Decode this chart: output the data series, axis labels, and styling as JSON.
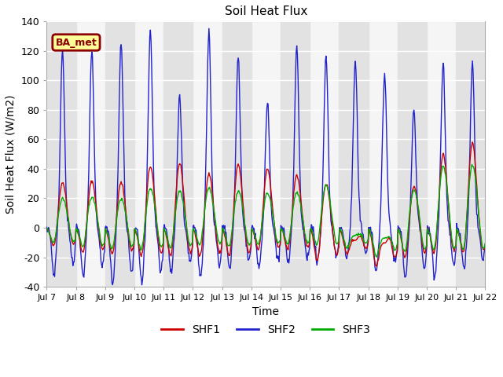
{
  "title": "Soil Heat Flux",
  "xlabel": "Time",
  "ylabel": "Soil Heat Flux (W/m2)",
  "ylim": [
    -40,
    140
  ],
  "yticks": [
    -40,
    -20,
    0,
    20,
    40,
    60,
    80,
    100,
    120,
    140
  ],
  "xtick_labels": [
    "Jul 7",
    "Jul 8",
    "Jul 9",
    "Jul 10",
    "Jul 11",
    "Jul 12",
    "Jul 13",
    "Jul 14",
    "Jul 15",
    "Jul 16",
    "Jul 17",
    "Jul 18",
    "Jul 19",
    "Jul 20",
    "Jul 21",
    "Jul 22"
  ],
  "station_label": "BA_met",
  "line_colors": {
    "SHF1": "#cc0000",
    "SHF2": "#2222cc",
    "SHF3": "#00aa00"
  },
  "fig_bg": "#ffffff",
  "plot_bg": "#f5f5f5",
  "band_color": "#e2e2e2",
  "grid_color": "#ffffff",
  "shf1_peaks": [
    31,
    32,
    31,
    42,
    44,
    37,
    43,
    40,
    36,
    30,
    -8,
    -10,
    28,
    50,
    58
  ],
  "shf2_peaks": [
    121,
    121,
    126,
    133,
    90,
    133,
    116,
    85,
    123,
    118,
    113,
    103,
    80,
    112,
    111
  ],
  "shf3_peaks": [
    20,
    21,
    20,
    27,
    25,
    27,
    25,
    24,
    24,
    29,
    -5,
    -7,
    26,
    42,
    43
  ],
  "shf1_troughs": [
    -14,
    -19,
    -20,
    -22,
    -22,
    -22,
    -22,
    -17,
    -17,
    -24,
    -17,
    -25,
    -22,
    -20,
    -20
  ],
  "shf2_troughs": [
    -32,
    -33,
    -38,
    -38,
    -30,
    -33,
    -28,
    -27,
    -25,
    -24,
    -20,
    -30,
    -35,
    -33,
    -28
  ],
  "shf3_troughs": [
    -13,
    -16,
    -17,
    -18,
    -17,
    -15,
    -16,
    -14,
    -14,
    -15,
    -13,
    -18,
    -20,
    -20,
    -20
  ]
}
